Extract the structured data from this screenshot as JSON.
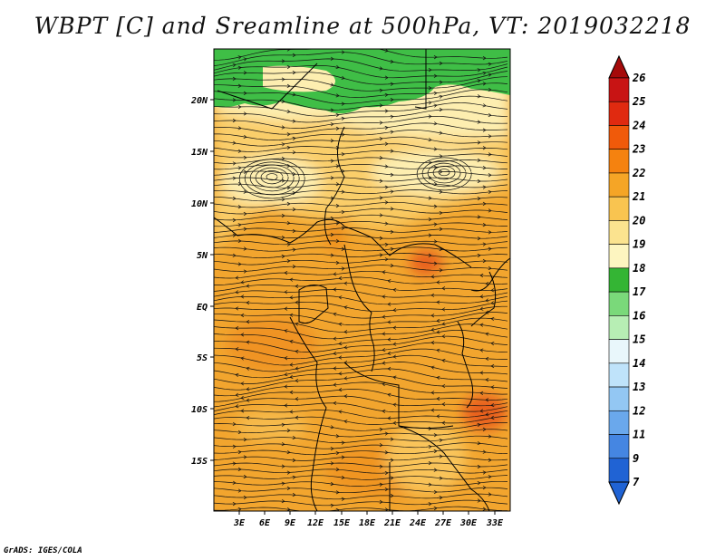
{
  "title": "WBPT [C] and Sreamline at 500hPa, VT: 2019032218",
  "footer": "GrADS: IGES/COLA",
  "map": {
    "lat_labels": [
      "20N",
      "15N",
      "10N",
      "5N",
      "EQ",
      "5S",
      "10S",
      "15S"
    ],
    "lon_labels": [
      "3E",
      "6E",
      "9E",
      "12E",
      "15E",
      "18E",
      "21E",
      "24E",
      "27E",
      "30E",
      "33E"
    ]
  },
  "colorbar": {
    "levels": [
      "26",
      "25",
      "24",
      "23",
      "22",
      "21",
      "20",
      "19",
      "18",
      "17",
      "16",
      "15",
      "14",
      "13",
      "12",
      "11",
      "9",
      "7"
    ],
    "colors": [
      "#a50a0a",
      "#c81414",
      "#e02a10",
      "#f05a0a",
      "#f5820f",
      "#f5a526",
      "#f9c450",
      "#fbe38f",
      "#fdf5c0",
      "#34b534",
      "#7ad97a",
      "#b7eeb4",
      "#e9f7fb",
      "#bfe3fa",
      "#93c7f3",
      "#6aa8ec",
      "#4586e2",
      "#2063d4"
    ]
  },
  "field_colors": {
    "green": "#3fbe46",
    "pale": "#fdeeb0",
    "light_orange": "#f9c85e",
    "orange": "#f2a52e",
    "dark_orange": "#ef8f1f",
    "red": "#e8601a"
  }
}
